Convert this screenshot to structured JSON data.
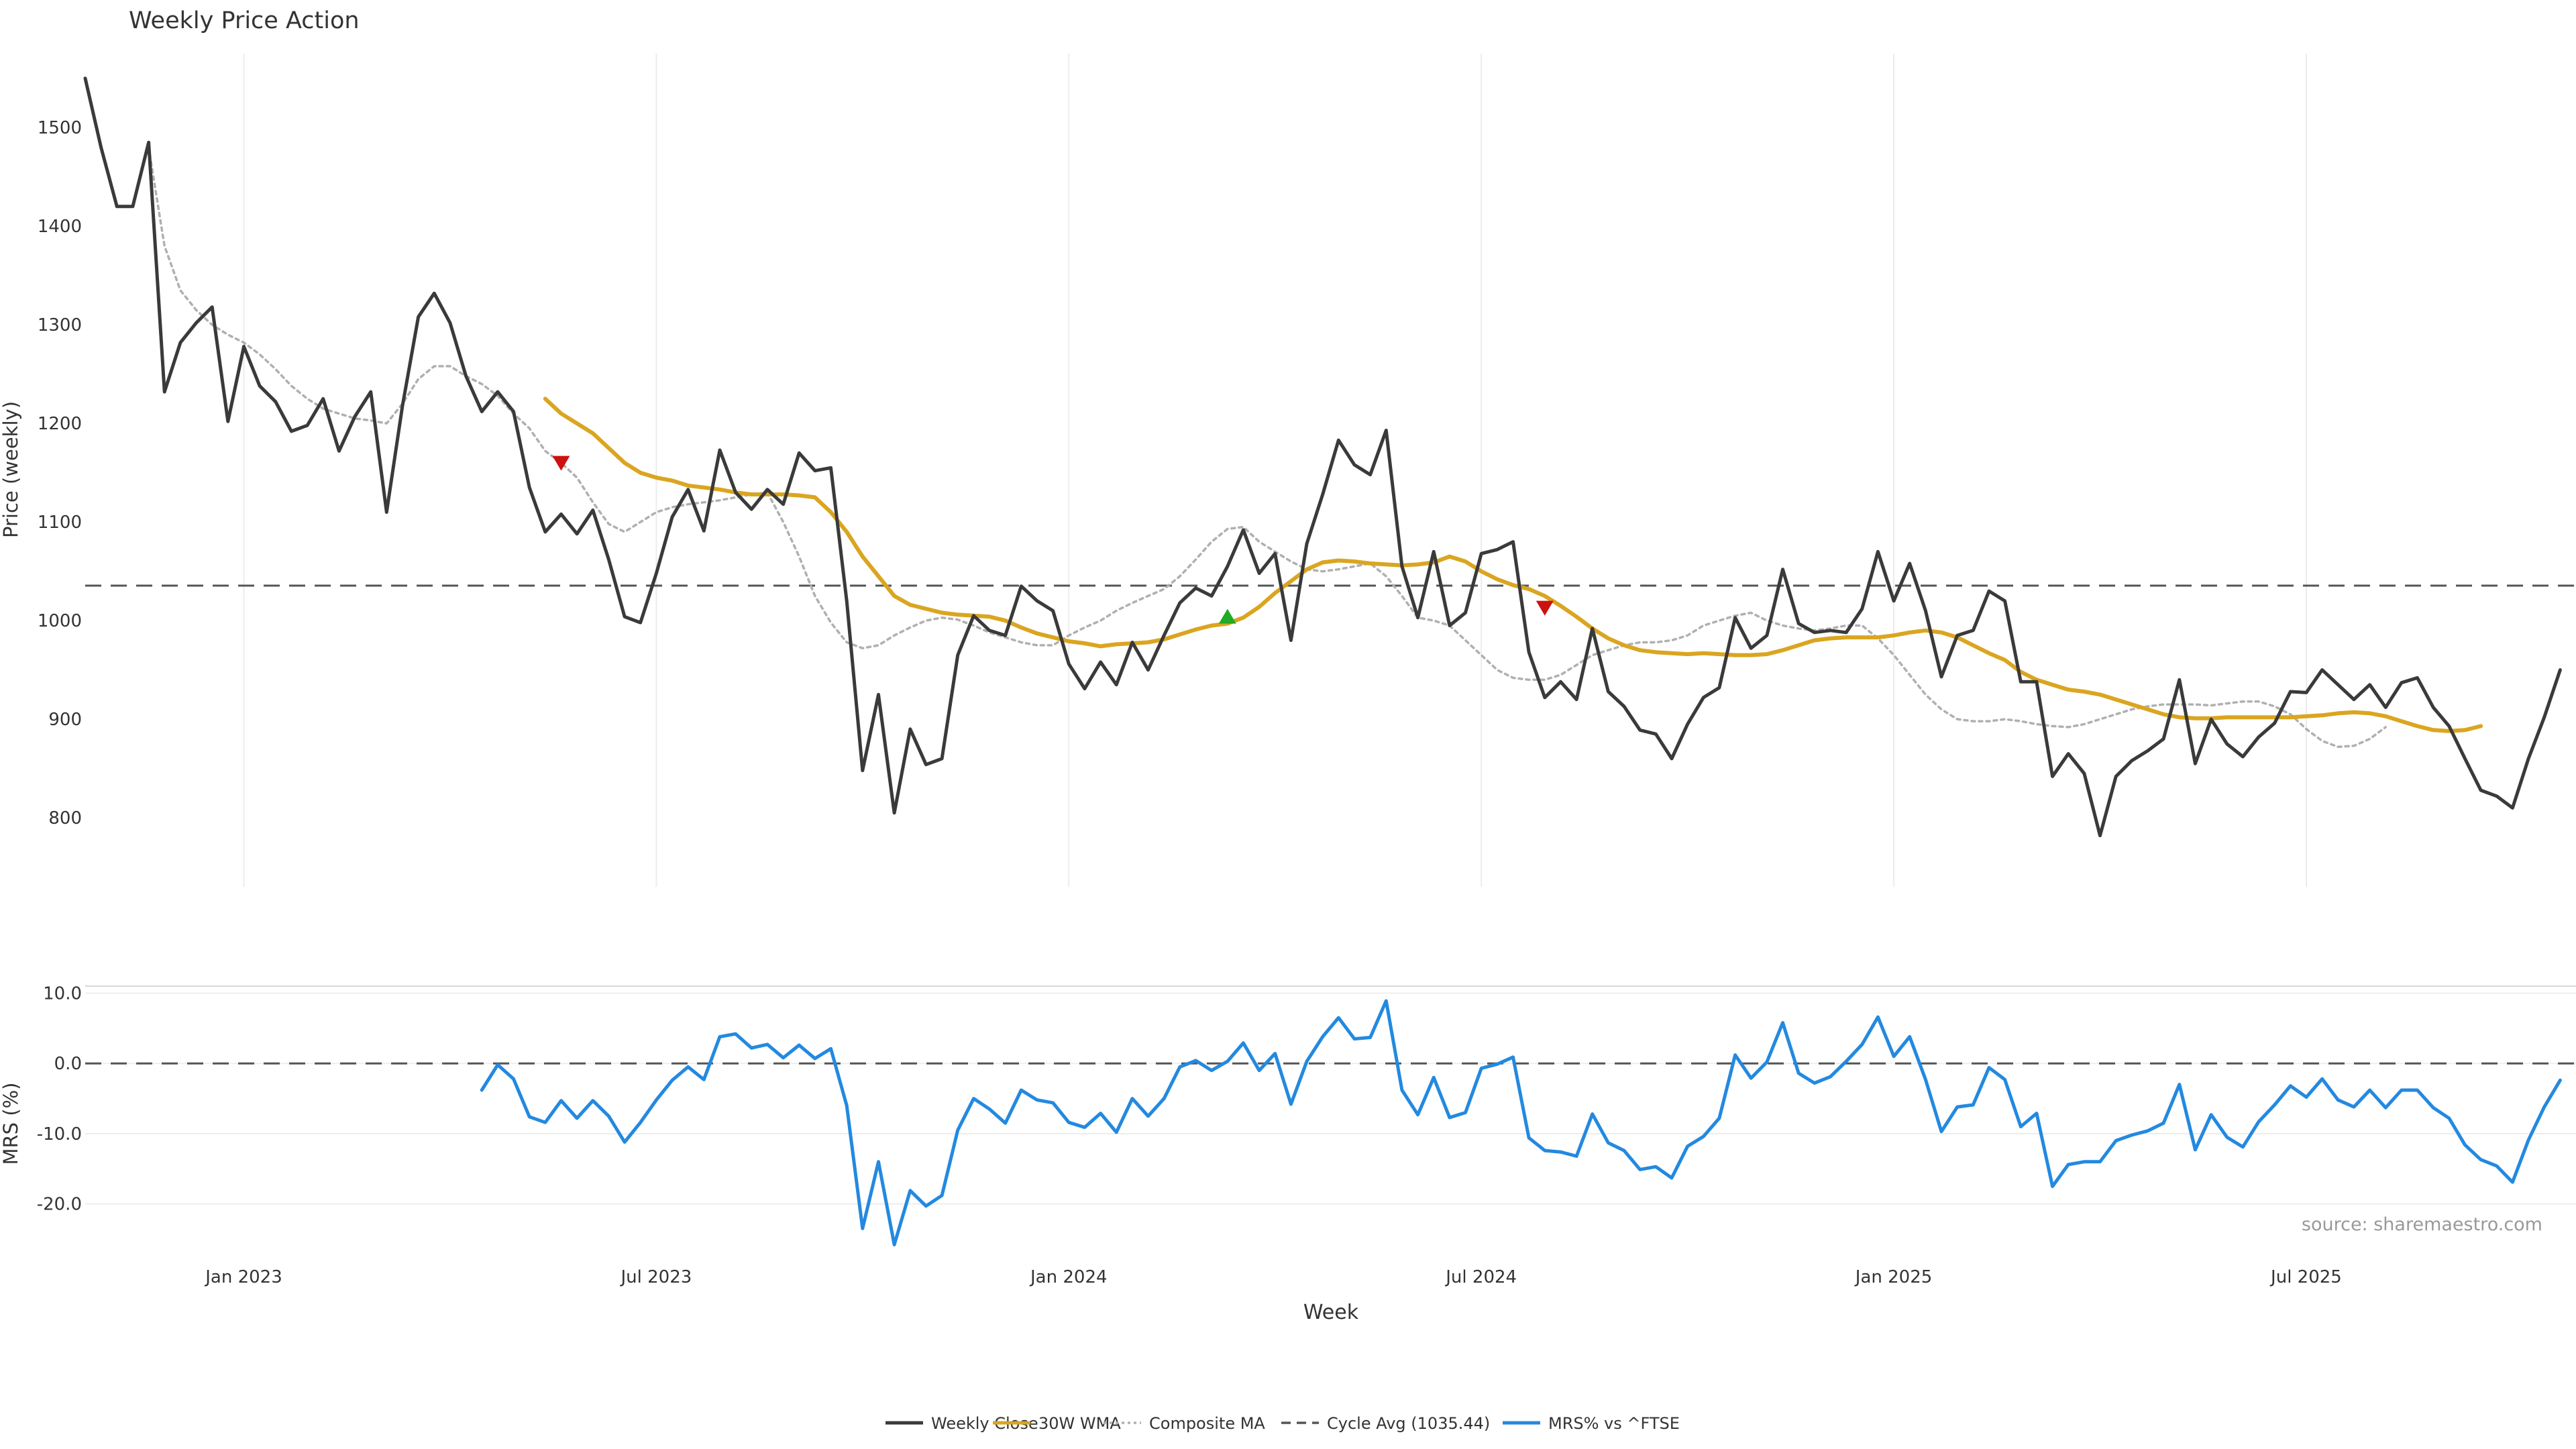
{
  "chart_data": {
    "type": "line",
    "title": "Weekly Price Action",
    "xlabel": "Week",
    "source": "source: sharemaestro.com",
    "x_ticks": [
      "Jan 2023",
      "Jul 2023",
      "Jan 2024",
      "Jul 2024",
      "Jan 2025",
      "Jul 2025"
    ],
    "x_tick_weeks": [
      10,
      36,
      62,
      88,
      114,
      140
    ],
    "weeks_total": 157,
    "price_panel": {
      "ylabel": "Price (weekly)",
      "ylim": [
        730,
        1575
      ],
      "yticks": [
        800,
        900,
        1000,
        1100,
        1200,
        1300,
        1400,
        1500
      ],
      "cycle_avg": 1035.44
    },
    "mrs_panel": {
      "ylabel": "MRS (%)",
      "ylim": [
        -27,
        11
      ],
      "yticks": [
        10,
        0,
        -10,
        -20
      ],
      "ytick_labels": [
        "10.0",
        "0.0",
        "-10.0",
        "-20.0"
      ],
      "zero_line": 0
    },
    "series": [
      {
        "name": "Weekly Close",
        "color": "#3a3a3a",
        "style": "solid",
        "start_week": 0,
        "values": [
          1550,
          1480,
          1420,
          1420,
          1485,
          1232,
          1282,
          1302,
          1318,
          1202,
          1278,
          1238,
          1222,
          1192,
          1198,
          1225,
          1172,
          1207,
          1232,
          1110,
          1218,
          1308,
          1332,
          1302,
          1248,
          1212,
          1232,
          1212,
          1135,
          1090,
          1108,
          1088,
          1112,
          1062,
          1004,
          998,
          1048,
          1105,
          1133,
          1091,
          1173,
          1130,
          1113,
          1133,
          1118,
          1170,
          1152,
          1155,
          1020,
          848,
          925,
          805,
          890,
          854,
          860,
          965,
          1005,
          990,
          985,
          1035,
          1020,
          1010,
          956,
          931,
          958,
          935,
          978,
          950,
          985,
          1018,
          1033,
          1025,
          1055,
          1092,
          1048,
          1068,
          980,
          1078,
          1128,
          1183,
          1158,
          1148,
          1193,
          1055,
          1003,
          1070,
          995,
          1008,
          1068,
          1072,
          1080,
          968,
          922,
          938,
          920,
          992,
          928,
          913,
          889,
          885,
          860,
          895,
          922,
          932,
          1003,
          972,
          985,
          1052,
          997,
          988,
          990,
          988,
          1012,
          1070,
          1020,
          1058,
          1010,
          943,
          985,
          990,
          1030,
          1020,
          938,
          938,
          842,
          865,
          845,
          782,
          842,
          858,
          868,
          880,
          940,
          855,
          900,
          875,
          862,
          882,
          896,
          928,
          927,
          950,
          935,
          920,
          935,
          912,
          937,
          942,
          912,
          893,
          860,
          828,
          822,
          810,
          860,
          902,
          950
        ]
      },
      {
        "name": "30W WMA",
        "color": "#daa520",
        "style": "solid",
        "start_week": 29,
        "values": [
          1225,
          1210,
          1200,
          1190,
          1175,
          1160,
          1150,
          1145,
          1142,
          1137,
          1135,
          1133,
          1130,
          1128,
          1128,
          1128,
          1127,
          1125,
          1110,
          1090,
          1065,
          1045,
          1025,
          1016,
          1012,
          1008,
          1006,
          1005,
          1004,
          1000,
          993,
          987,
          983,
          979,
          977,
          974,
          976,
          977,
          978,
          981,
          986,
          991,
          995,
          997,
          1003,
          1014,
          1028,
          1040,
          1052,
          1059,
          1061,
          1060,
          1058,
          1057,
          1056,
          1057,
          1059,
          1065,
          1060,
          1050,
          1042,
          1036,
          1032,
          1025,
          1015,
          1004,
          992,
          982,
          975,
          970,
          968,
          967,
          966,
          967,
          966,
          965,
          965,
          966,
          970,
          975,
          980,
          982,
          983,
          983,
          983,
          985,
          988,
          990,
          988,
          983,
          975,
          967,
          960,
          948,
          940,
          935,
          930,
          928,
          925,
          920,
          915,
          910,
          905,
          902,
          901,
          901,
          902,
          902,
          902,
          902,
          902,
          903,
          904,
          906,
          907,
          906,
          903,
          898,
          893,
          889,
          888,
          889,
          893
        ]
      },
      {
        "name": "Composite MA",
        "color": "#b0b0b0",
        "style": "dotted",
        "start_week": 4,
        "values": [
          1480,
          1380,
          1335,
          1315,
          1300,
          1290,
          1282,
          1270,
          1255,
          1238,
          1225,
          1215,
          1210,
          1205,
          1203,
          1200,
          1220,
          1245,
          1258,
          1258,
          1248,
          1240,
          1228,
          1210,
          1195,
          1172,
          1160,
          1145,
          1120,
          1098,
          1090,
          1100,
          1110,
          1115,
          1118,
          1120,
          1122,
          1125,
          1128,
          1130,
          1100,
          1065,
          1025,
          998,
          978,
          972,
          975,
          985,
          993,
          1000,
          1003,
          1001,
          995,
          988,
          983,
          978,
          975,
          975,
          985,
          993,
          1000,
          1010,
          1018,
          1025,
          1032,
          1045,
          1062,
          1080,
          1093,
          1095,
          1080,
          1070,
          1060,
          1052,
          1050,
          1052,
          1055,
          1058,
          1045,
          1025,
          1003,
          1000,
          995,
          980,
          965,
          950,
          942,
          940,
          940,
          945,
          955,
          965,
          970,
          975,
          978,
          978,
          980,
          985,
          995,
          1000,
          1005,
          1008,
          1000,
          995,
          992,
          990,
          992,
          995,
          995,
          982,
          965,
          945,
          925,
          910,
          900,
          898,
          898,
          900,
          898,
          895,
          893,
          892,
          895,
          900,
          905,
          910,
          913,
          915,
          915,
          915,
          914,
          916,
          918,
          918,
          913,
          905,
          890,
          878,
          872,
          873,
          880,
          892
        ]
      },
      {
        "name": "Cycle Avg (1035.44)",
        "color": "#555555",
        "style": "dashed"
      },
      {
        "name": "MRS% vs ^FTSE",
        "color": "#2389e0",
        "style": "solid",
        "start_week": 25,
        "values": [
          -3.8,
          -0.2,
          -2.2,
          -7.6,
          -8.4,
          -5.3,
          -7.8,
          -5.3,
          -7.5,
          -11.2,
          -8.4,
          -5.2,
          -2.4,
          -0.5,
          -2.3,
          3.8,
          4.2,
          2.2,
          2.7,
          0.8,
          2.6,
          0.7,
          2.1,
          -6,
          -23.5,
          -14,
          -25.8,
          -18.1,
          -20.3,
          -18.8,
          -9.5,
          -5,
          -6.5,
          -8.5,
          -3.8,
          -5.2,
          -5.6,
          -8.4,
          -9.1,
          -7.1,
          -9.8,
          -5,
          -7.5,
          -5,
          -0.5,
          0.4,
          -1,
          0.3,
          2.9,
          -1,
          1.4,
          -5.8,
          0.3,
          3.8,
          6.5,
          3.5,
          3.7,
          8.9,
          -3.8,
          -7.3,
          -2,
          -7.7,
          -7,
          -0.7,
          -0.1,
          0.9,
          -10.6,
          -12.4,
          -12.6,
          -13.2,
          -7.2,
          -11.3,
          -12.4,
          -15.1,
          -14.7,
          -16.3,
          -11.8,
          -10.4,
          -7.8,
          1.2,
          -2.1,
          0.2,
          5.8,
          -1.4,
          -2.8,
          -1.9,
          0.3,
          2.7,
          6.6,
          1,
          3.8,
          -2.3,
          -9.7,
          -6.2,
          -5.9,
          -0.6,
          -2.3,
          -9,
          -7.1,
          -17.5,
          -14.4,
          -14,
          -14,
          -11,
          -10.2,
          -9.6,
          -8.5,
          -3,
          -12.3,
          -7.3,
          -10.5,
          -11.9,
          -8.3,
          -5.9,
          -3.2,
          -4.8,
          -2.2,
          -5.2,
          -6.2,
          -3.8,
          -6.3,
          -3.8,
          -3.8,
          -6.3,
          -7.8,
          -11.6,
          -13.7,
          -14.6,
          -16.9,
          -10.9,
          -6.2,
          -2.4
        ]
      }
    ],
    "signals": [
      {
        "type": "sell",
        "week": 30,
        "value": 1160,
        "color": "#cc1111"
      },
      {
        "type": "buy",
        "week": 72,
        "value": 1004,
        "color": "#22aa22"
      },
      {
        "type": "sell",
        "week": 92,
        "value": 1013,
        "color": "#cc1111"
      }
    ]
  }
}
